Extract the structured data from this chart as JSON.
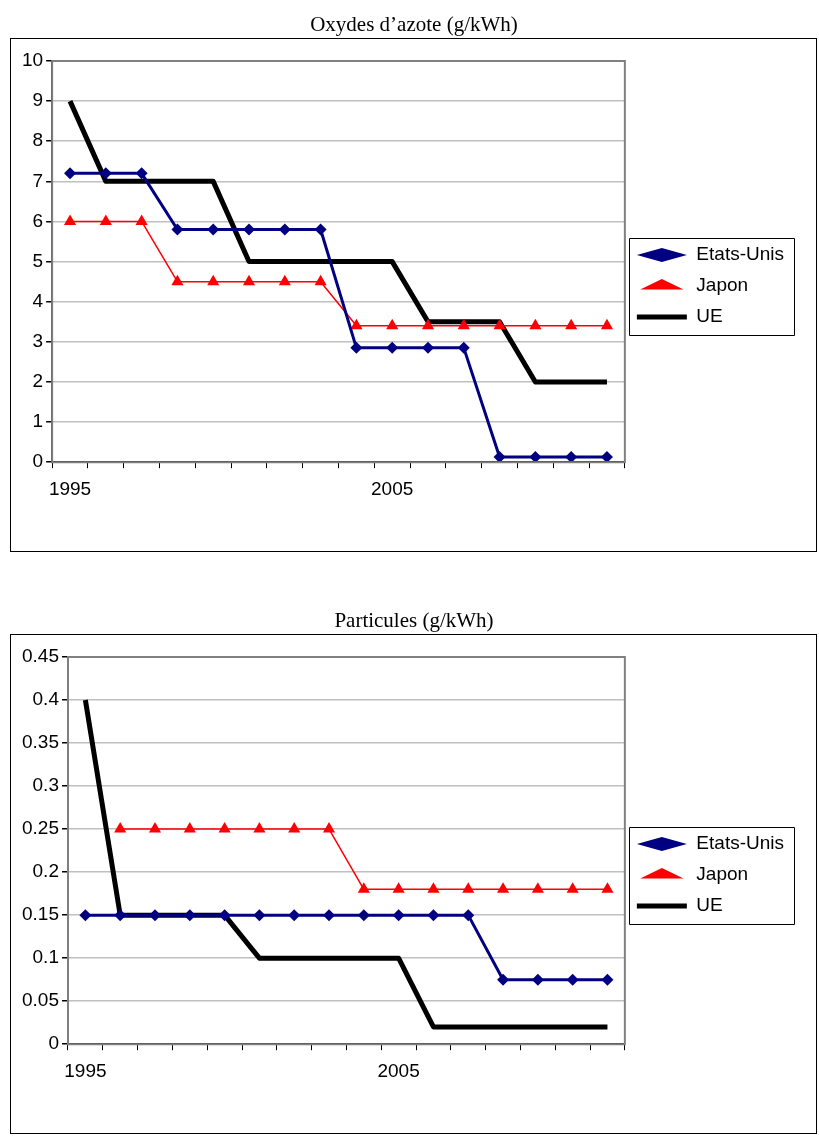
{
  "chart_data": [
    {
      "type": "line",
      "title": "Oxydes d’azote (g/kWh)",
      "categories": [
        "1995",
        null,
        null,
        null,
        null,
        null,
        null,
        null,
        null,
        "2005",
        null,
        null,
        null,
        null,
        null,
        null
      ],
      "series": [
        {
          "name": "Etats-Unis",
          "color": "#000080",
          "marker": "diamond",
          "values": [
            7.2,
            7.2,
            7.2,
            5.8,
            5.8,
            5.8,
            5.8,
            5.8,
            2.85,
            2.85,
            2.85,
            2.85,
            0.13,
            0.13,
            0.13,
            0.13
          ]
        },
        {
          "name": "Japon",
          "color": "#ff0000",
          "marker": "triangle",
          "values": [
            6,
            6,
            6,
            4.5,
            4.5,
            4.5,
            4.5,
            4.5,
            3.4,
            3.4,
            3.4,
            3.4,
            3.4,
            3.4,
            3.4,
            3.4
          ]
        },
        {
          "name": "UE",
          "color": "#000000",
          "marker": "none",
          "values": [
            9,
            7,
            7,
            7,
            7,
            5,
            5,
            5,
            5,
            5,
            3.5,
            3.5,
            3.5,
            2,
            2,
            2
          ]
        }
      ],
      "ylim": [
        0,
        10
      ],
      "yticks": [
        0,
        1,
        2,
        3,
        4,
        5,
        6,
        7,
        8,
        9,
        10
      ],
      "grid": "y",
      "legend": "right"
    },
    {
      "type": "line",
      "title": "Particules (g/kWh)",
      "categories": [
        "1995",
        null,
        null,
        null,
        null,
        null,
        null,
        null,
        null,
        "2005",
        null,
        null,
        null,
        null,
        null,
        null
      ],
      "series": [
        {
          "name": "Etats-Unis",
          "color": "#000080",
          "marker": "diamond",
          "values": [
            0.15,
            0.15,
            0.15,
            0.15,
            0.15,
            0.15,
            0.15,
            0.15,
            0.15,
            0.15,
            0.15,
            0.15,
            0.075,
            0.075,
            0.075,
            0.075
          ]
        },
        {
          "name": "Japon",
          "color": "#ff0000",
          "marker": "triangle",
          "values": [
            null,
            0.25,
            0.25,
            0.25,
            0.25,
            0.25,
            0.25,
            0.25,
            0.18,
            0.18,
            0.18,
            0.18,
            0.18,
            0.18,
            0.18,
            0.18
          ]
        },
        {
          "name": "UE",
          "color": "#000000",
          "marker": "none",
          "values": [
            0.4,
            0.15,
            0.15,
            0.15,
            0.15,
            0.1,
            0.1,
            0.1,
            0.1,
            0.1,
            0.02,
            0.02,
            0.02,
            0.02,
            0.02,
            0.02
          ]
        }
      ],
      "ylim": [
        0,
        0.45
      ],
      "yticks": [
        0,
        0.05,
        0.1,
        0.15,
        0.2,
        0.25,
        0.3,
        0.35,
        0.4,
        0.45
      ],
      "grid": "y",
      "legend": "right"
    }
  ]
}
